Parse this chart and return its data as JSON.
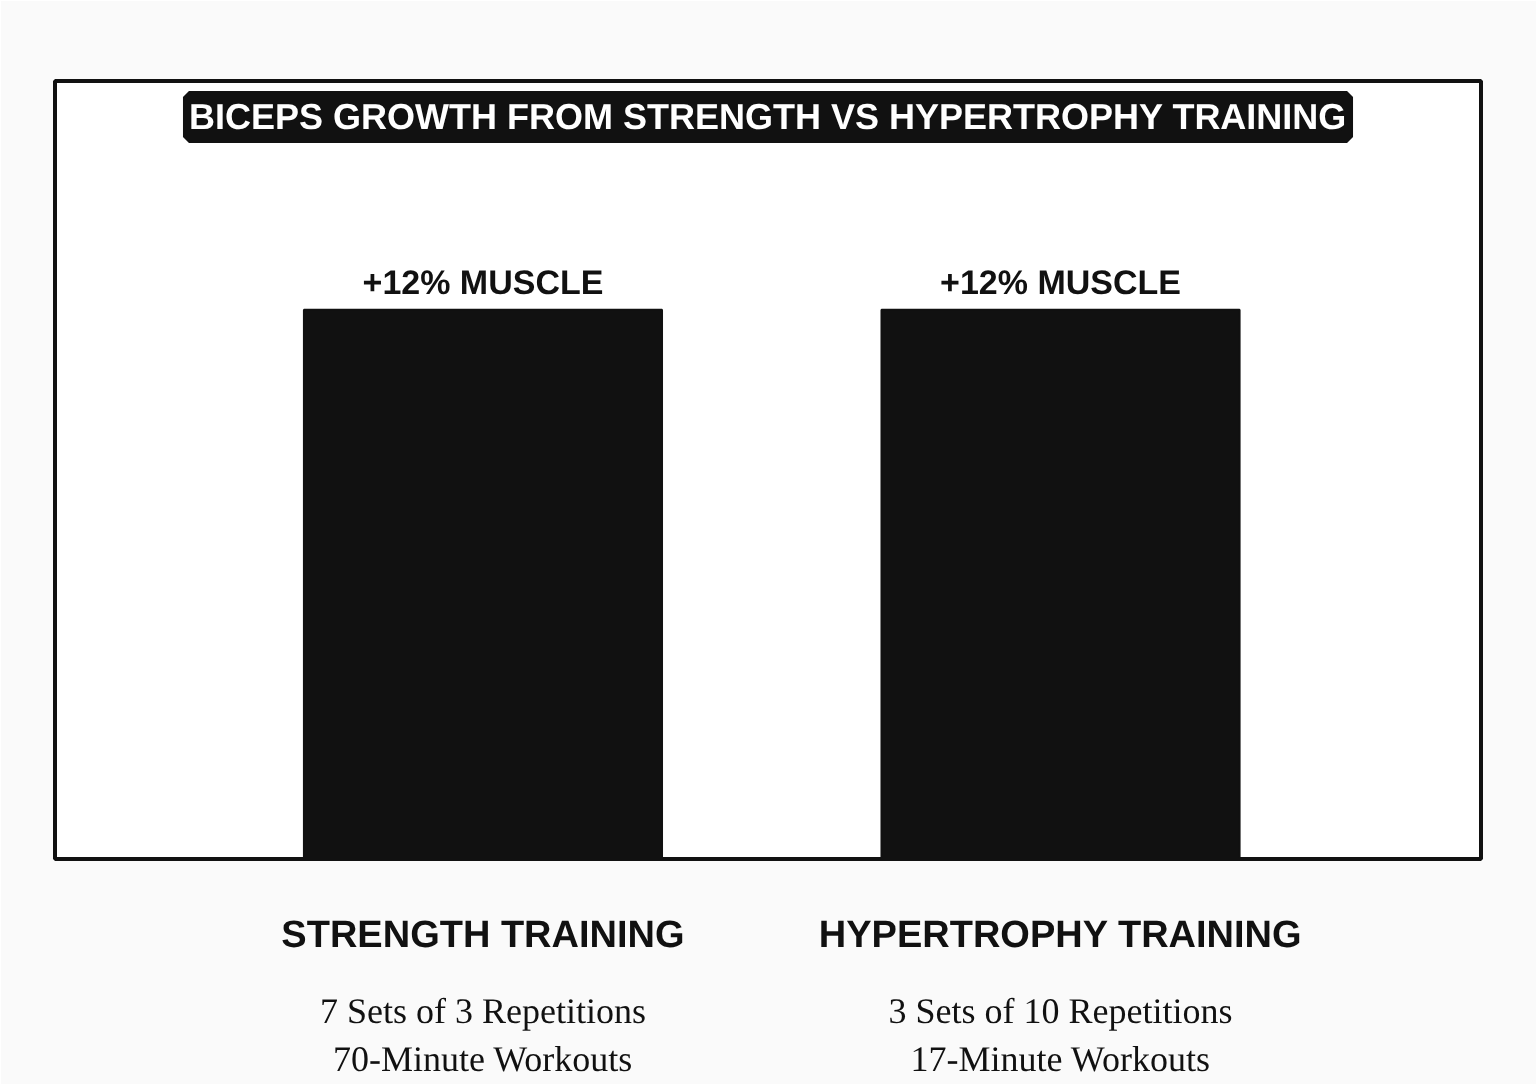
{
  "chart_data": {
    "type": "bar",
    "title": "BICEPS GROWTH FROM STRENGTH VS HYPERTROPHY TRAINING",
    "categories": [
      "STRENGTH TRAINING",
      "HYPERTROPHY TRAINING"
    ],
    "values": [
      12,
      12
    ],
    "color": "#111111",
    "value_labels": [
      "+12% MUSCLE",
      "+12% MUSCLE"
    ],
    "ylim": [
      0,
      17
    ],
    "tick_labels": "x",
    "annotations": [
      "7 Sets of 3 Repetitions\n70-Minute Workouts",
      "3 Sets of 10 Repetitions\n17-Minute Workouts"
    ]
  }
}
